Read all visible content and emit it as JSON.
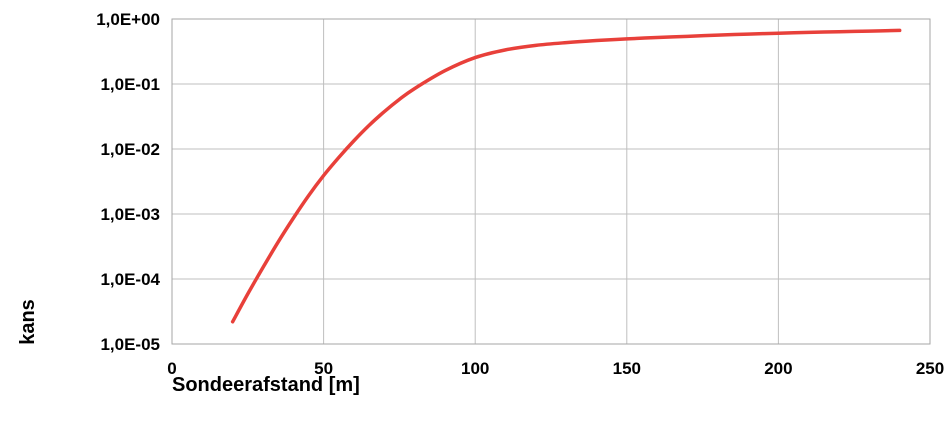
{
  "chart_data": {
    "type": "line",
    "title": "",
    "xlabel": "Sondeerafstand [m]",
    "ylabel": "kans",
    "xscale": "linear",
    "yscale": "log",
    "xlim": [
      0,
      250
    ],
    "ylim": [
      1e-05,
      1
    ],
    "x_ticks": [
      0,
      50,
      100,
      150,
      200,
      250
    ],
    "x_tick_labels": [
      "0",
      "50",
      "100",
      "150",
      "200",
      "250"
    ],
    "y_ticks": [
      1e-05,
      0.0001,
      0.001,
      0.01,
      0.1,
      1
    ],
    "y_tick_labels": [
      "1,0E-05",
      "1,0E-04",
      "1,0E-03",
      "1,0E-02",
      "1,0E-01",
      "1,0E+00"
    ],
    "grid": true,
    "legend": "none",
    "series": [
      {
        "color": "#e8403a",
        "x": [
          20,
          25,
          30,
          35,
          40,
          45,
          50,
          55,
          60,
          65,
          70,
          75,
          80,
          90,
          100,
          110,
          120,
          130,
          140,
          150,
          160,
          170,
          180,
          190,
          200,
          210,
          220,
          230,
          240
        ],
        "y": [
          2.2e-05,
          5.9e-05,
          0.00015,
          0.00037,
          0.00086,
          0.0019,
          0.0039,
          0.0074,
          0.0134,
          0.0231,
          0.0375,
          0.058,
          0.085,
          0.16,
          0.255,
          0.335,
          0.393,
          0.433,
          0.466,
          0.494,
          0.519,
          0.541,
          0.565,
          0.586,
          0.605,
          0.622,
          0.637,
          0.652,
          0.667
        ]
      }
    ]
  }
}
